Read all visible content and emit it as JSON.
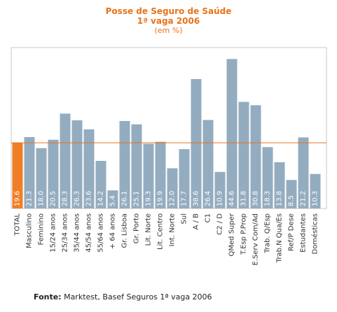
{
  "title_line1": "Posse de Seguro de Saúde",
  "title_line2": "1ª vaga 2006",
  "subtitle": "(em %)",
  "source_label": "Fonte:",
  "source_text": " Marktest, Basef Seguros 1ª vaga 2006",
  "colors": {
    "bar": "#94acc0",
    "total_bar": "#f07e26",
    "reference_line": "#e8731a",
    "title": "#e8731a",
    "plot_border": "#c8c8c8"
  },
  "chart_data": {
    "type": "bar",
    "title": "Posse de Seguro de Saúde 1ª vaga 2006",
    "subtitle": "(em %)",
    "categories": [
      "TOTAL",
      "Masculino",
      "Feminino",
      "15/24 anos",
      "25/34 anos",
      "35/44 anos",
      "45/54 anos",
      "55/64 anos",
      "+ 64 anos",
      "Gr. Lisboa",
      "Gr. Porto",
      "Lit. Norte",
      "Lit. Centro",
      "Int. Norte",
      "Sul",
      "A / B",
      "C1",
      "C2 / D",
      "QMed Super",
      "T.Esp P.Prop",
      "E.Serv Com/Ad",
      "Trab. Q/Esp",
      "Trab.N Qua/Es",
      "Ref/P Dese",
      "Estudantes",
      "Domésticas"
    ],
    "values": [
      19.6,
      21.3,
      18.0,
      20.5,
      28.3,
      26.3,
      23.6,
      14.2,
      5.4,
      26.1,
      25.1,
      19.3,
      19.9,
      12.0,
      17.7,
      38.6,
      26.4,
      10.9,
      44.6,
      31.8,
      30.8,
      18.3,
      13.8,
      8.5,
      21.2,
      10.3
    ],
    "value_labels": [
      "19.6",
      "21.3",
      "18.0",
      "20.5",
      "28.3",
      "26.3",
      "23.6",
      "14.2",
      "5.4",
      "26.1",
      "25.1",
      "19.3",
      "19.9",
      "12.0",
      "17.7",
      "38.6",
      "26.4",
      "10.9",
      "44.6",
      "31.8",
      "30.8",
      "18.3",
      "13.8",
      "8.5",
      "21.2",
      "10.3"
    ],
    "highlighted_category": "TOTAL",
    "reference_line_value": 19.6,
    "ylim": [
      0,
      48
    ],
    "grid": false,
    "legend": "none"
  }
}
